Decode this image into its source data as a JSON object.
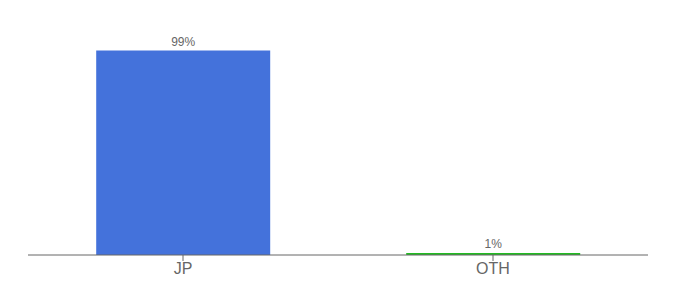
{
  "chart_data": {
    "type": "bar",
    "categories": [
      "JP",
      "OTH"
    ],
    "values": [
      99,
      1
    ],
    "value_labels": [
      "99%",
      "1%"
    ],
    "colors": [
      "#4472db",
      "#22bb22"
    ],
    "ylim": [
      0,
      108
    ],
    "data_labels": true,
    "tick_labels": "x"
  }
}
